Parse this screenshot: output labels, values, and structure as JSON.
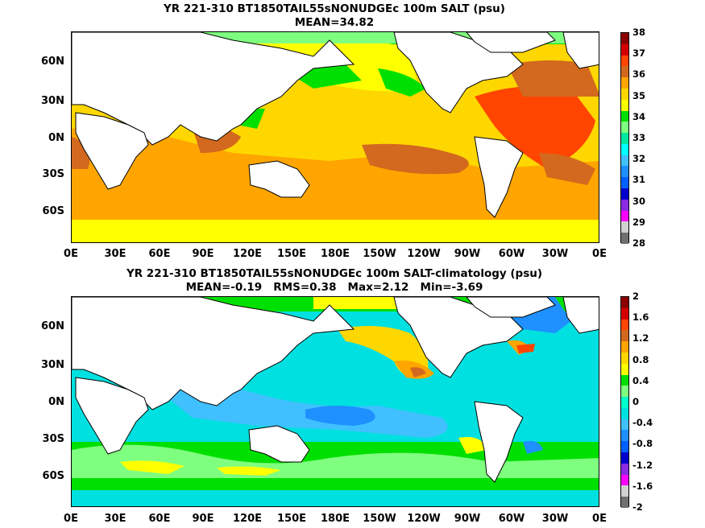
{
  "top": {
    "title_line1": "YR 221-310 BT1850TAIL55sNONUDGEc 100m SALT (psu)",
    "title_line2": "MEAN=34.82",
    "colorbar": {
      "labels": [
        "38",
        "37",
        "36",
        "35",
        "34",
        "33",
        "32",
        "31",
        "30",
        "29",
        "28"
      ],
      "colors": [
        "#8b0000",
        "#d40000",
        "#ff4500",
        "#d2691e",
        "#ffa500",
        "#ffd700",
        "#ffff00",
        "#00e000",
        "#7fff7f",
        "#00e8a0",
        "#00ffff",
        "#40c0ff",
        "#1e90ff",
        "#0060ff",
        "#0000cd",
        "#8a2be2",
        "#ff00ff",
        "#d0d0d0",
        "#707070"
      ]
    }
  },
  "bottom": {
    "title_line1": "YR 221-310 BT1850TAIL55sNONUDGEc 100m SALT-climatology (psu)",
    "title_line2": "MEAN=-0.19   RMS=0.38   Max=2.12   Min=-3.69",
    "colorbar": {
      "labels": [
        "2",
        "1.6",
        "1.2",
        "0.8",
        "0.4",
        "0",
        "-0.4",
        "-0.8",
        "-1.2",
        "-1.6",
        "-2"
      ],
      "colors": [
        "#8b0000",
        "#d40000",
        "#ff4500",
        "#d2691e",
        "#ffa500",
        "#ffd700",
        "#ffff00",
        "#00e000",
        "#7fff7f",
        "#00ffcc",
        "#00e0e0",
        "#40c0ff",
        "#1e90ff",
        "#0060ff",
        "#0000cd",
        "#8a2be2",
        "#ff00ff",
        "#d0d0d0",
        "#707070"
      ]
    }
  },
  "lat_labels": [
    "60N",
    "30N",
    "0N",
    "30S",
    "60S"
  ],
  "lon_labels": [
    "0E",
    "30E",
    "60E",
    "90E",
    "120E",
    "150E",
    "180E",
    "150W",
    "120W",
    "90W",
    "60W",
    "30W",
    "0E"
  ],
  "colors": {
    "land": "#ffffff",
    "coast": "#000000"
  }
}
